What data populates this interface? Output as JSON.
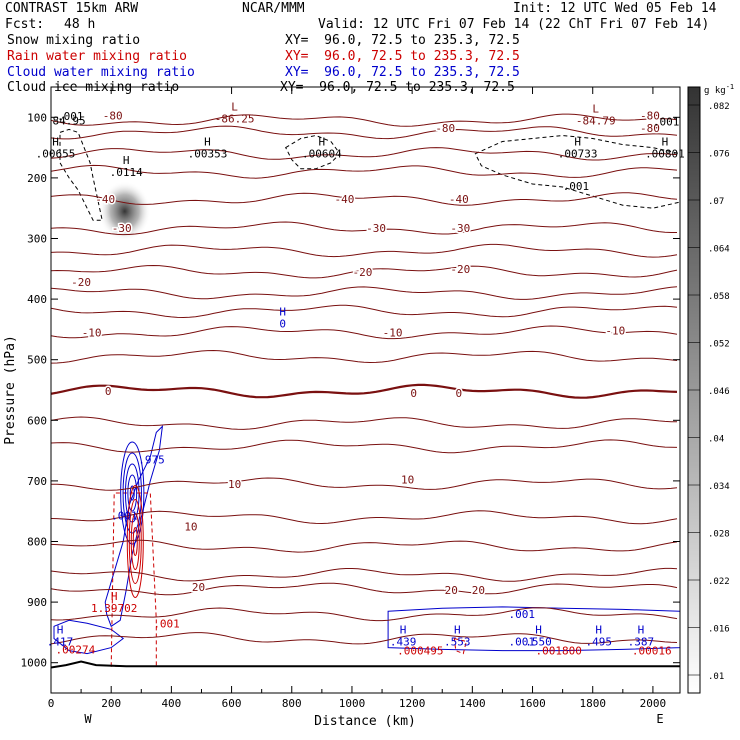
{
  "header": {
    "title": "CONTRAST 15km ARW",
    "center": "NCAR/MMM",
    "init": "Init: 12 UTC Wed 05 Feb 14",
    "fcst_label": "Fcst:",
    "fcst_value": "48 h",
    "valid": "Valid: 12 UTC Fri 07 Feb 14 (22 ChT Fri 07 Feb 14)",
    "fields": [
      {
        "name": "Snow mixing ratio",
        "xy": "XY=  96.0, 72.5 to 235.3, 72.5",
        "color": "#000000"
      },
      {
        "name": "Rain water mixing ratio",
        "xy": "XY=  96.0, 72.5 to 235.3, 72.5",
        "color": "#cc0000"
      },
      {
        "name": "Cloud water mixing ratio",
        "xy": "XY=  96.0, 72.5 to 235.3, 72.5",
        "color": "#0000cc"
      },
      {
        "name": "Cloud ice mixing ratio",
        "xy": "XY=  96.0, 72.5 to 235.3, 72.5",
        "color": "#000000"
      }
    ]
  },
  "chart_data": {
    "type": "cross-section contour",
    "xlabel": "Distance (km)",
    "ylabel": "Pressure (hPa)",
    "xlim": [
      0,
      2090
    ],
    "ylim": [
      1050,
      50
    ],
    "x_ticks": [
      "0",
      "200",
      "400",
      "600",
      "800",
      "1000",
      "1200",
      "1400",
      "1600",
      "1800",
      "2000"
    ],
    "y_ticks": [
      "100",
      "200",
      "300",
      "400",
      "500",
      "600",
      "700",
      "800",
      "900",
      "1000"
    ],
    "x_end_labels": [
      "W",
      "E"
    ],
    "colorbar": {
      "unit": "g kg",
      "unit_exp": "-1",
      "ticks": [
        ".01",
        ".016",
        ".022",
        ".028",
        ".034",
        ".04",
        ".046",
        ".052",
        ".058",
        ".064",
        ".07",
        ".076",
        ".082"
      ],
      "low_color": "#ffffff",
      "high_color": "#333333"
    },
    "temperature_contours": {
      "color": "#7a1010",
      "levels": [
        {
          "p": 105,
          "label": "-80"
        },
        {
          "p": 125,
          "label": "-80"
        },
        {
          "p": 160,
          "label": ""
        },
        {
          "p": 190,
          "label": ""
        },
        {
          "p": 235,
          "label": "-40"
        },
        {
          "p": 283,
          "label": "-30"
        },
        {
          "p": 320,
          "label": ""
        },
        {
          "p": 355,
          "label": "-20"
        },
        {
          "p": 390,
          "label": ""
        },
        {
          "p": 420,
          "label": ""
        },
        {
          "p": 455,
          "label": "-10"
        },
        {
          "p": 495,
          "label": ""
        },
        {
          "p": 552,
          "label": "0"
        },
        {
          "p": 605,
          "label": ""
        },
        {
          "p": 643,
          "label": ""
        },
        {
          "p": 705,
          "label": "10"
        },
        {
          "p": 760,
          "label": ""
        },
        {
          "p": 808,
          "label": ""
        },
        {
          "p": 855,
          "label": ""
        },
        {
          "p": 878,
          "label": "20"
        },
        {
          "p": 920,
          "label": ""
        },
        {
          "p": 960,
          "label": ""
        }
      ]
    },
    "temperature_labels": [
      {
        "x": 205,
        "p": 97,
        "text": "-80"
      },
      {
        "x": 1310,
        "p": 118,
        "text": "-80"
      },
      {
        "x": 1990,
        "p": 97,
        "text": "-80"
      },
      {
        "x": 1990,
        "p": 118,
        "text": "-80"
      },
      {
        "x": 180,
        "p": 235,
        "text": "-40"
      },
      {
        "x": 975,
        "p": 235,
        "text": "-40"
      },
      {
        "x": 1355,
        "p": 235,
        "text": "-40"
      },
      {
        "x": 235,
        "p": 283,
        "text": "-30"
      },
      {
        "x": 1080,
        "p": 283,
        "text": "-30"
      },
      {
        "x": 1360,
        "p": 283,
        "text": "-30"
      },
      {
        "x": 100,
        "p": 372,
        "text": "-20"
      },
      {
        "x": 1035,
        "p": 355,
        "text": "-20"
      },
      {
        "x": 1360,
        "p": 350,
        "text": "-20"
      },
      {
        "x": 135,
        "p": 455,
        "text": "-10"
      },
      {
        "x": 1135,
        "p": 455,
        "text": "-10"
      },
      {
        "x": 1875,
        "p": 452,
        "text": "-10"
      },
      {
        "x": 190,
        "p": 552,
        "text": "0"
      },
      {
        "x": 1205,
        "p": 555,
        "text": "0"
      },
      {
        "x": 1355,
        "p": 555,
        "text": "0"
      },
      {
        "x": 610,
        "p": 705,
        "text": "10"
      },
      {
        "x": 1185,
        "p": 698,
        "text": "10"
      },
      {
        "x": 465,
        "p": 775,
        "text": "10"
      },
      {
        "x": 490,
        "p": 875,
        "text": "20"
      },
      {
        "x": 1330,
        "p": 880,
        "text": "20"
      },
      {
        "x": 1420,
        "p": 880,
        "text": "20"
      }
    ],
    "extrema_labels": [
      {
        "x": 610,
        "p": 92,
        "letter": "L",
        "value": "-86.25",
        "color": "#7a1010"
      },
      {
        "x": 1810,
        "p": 95,
        "letter": "L",
        "value": "-84.79",
        "color": "#7a1010"
      },
      {
        "x": 15,
        "p": 150,
        "letter": "H",
        "value": ".00655",
        "color": "#000000"
      },
      {
        "x": 520,
        "p": 150,
        "letter": "H",
        "value": ".00353",
        "color": "#000000"
      },
      {
        "x": 900,
        "p": 150,
        "letter": "H",
        "value": ".00604",
        "color": "#000000"
      },
      {
        "x": 1750,
        "p": 150,
        "letter": "H",
        "value": ".00733",
        "color": "#000000"
      },
      {
        "x": 2040,
        "p": 150,
        "letter": "H",
        "value": ".00801",
        "color": "#000000"
      },
      {
        "x": 250,
        "p": 180,
        "letter": "H",
        "value": ".0114",
        "color": "#000000"
      },
      {
        "x": 770,
        "p": 430,
        "letter": "H",
        "value": "0",
        "color": "#0000cc"
      },
      {
        "x": 210,
        "p": 900,
        "letter": "H",
        "value": "1.39702",
        "color": "#cc0000"
      },
      {
        "x": 30,
        "p": 955,
        "letter": "H",
        "value": ".417",
        "color": "#0000cc"
      },
      {
        "x": 1170,
        "p": 955,
        "letter": "H",
        "value": ".439",
        "color": "#0000cc"
      },
      {
        "x": 1350,
        "p": 955,
        "letter": "H",
        "value": ".553",
        "color": "#0000cc"
      },
      {
        "x": 1620,
        "p": 955,
        "letter": "H",
        "value": ".550",
        "color": "#0000cc"
      },
      {
        "x": 1820,
        "p": 955,
        "letter": "H",
        "value": ".495",
        "color": "#0000cc"
      },
      {
        "x": 1960,
        "p": 955,
        "letter": "H",
        "value": ".387",
        "color": "#0000cc"
      }
    ],
    "extra_text": [
      {
        "x": 5,
        "p": 105,
        "text": "84.95",
        "color": "#000000"
      },
      {
        "x": 20,
        "p": 98,
        "text": ".001",
        "color": "#000000"
      },
      {
        "x": 2000,
        "p": 107,
        "text": ".001",
        "color": "#000000"
      },
      {
        "x": 1700,
        "p": 213,
        "text": ".001",
        "color": "#000000"
      },
      {
        "x": 290,
        "p": 665,
        "text": ".975",
        "color": "#0000cc"
      },
      {
        "x": 200,
        "p": 757,
        "text": ".001",
        "color": "#0000cc"
      },
      {
        "x": 340,
        "p": 935,
        "text": ".001",
        "color": "#cc0000"
      },
      {
        "x": 1520,
        "p": 920,
        "text": ".001",
        "color": "#0000cc"
      },
      {
        "x": 1520,
        "p": 965,
        "text": ".001",
        "color": "#0000cc"
      },
      {
        "x": 15,
        "p": 978,
        "text": ".00274",
        "color": "#cc0000"
      },
      {
        "x": 1150,
        "p": 980,
        "text": ".000495",
        "color": "#cc0000"
      },
      {
        "x": 1610,
        "p": 980,
        "text": ".001800",
        "color": "#cc0000"
      },
      {
        "x": 1930,
        "p": 980,
        "text": ".00016",
        "color": "#cc0000"
      }
    ],
    "ground": {
      "x": [
        0,
        50,
        100,
        150,
        250,
        400,
        1000,
        2090
      ],
      "p": [
        1008,
        1004,
        998,
        1004,
        1006,
        1006,
        1006,
        1006
      ]
    },
    "shaded_maxima": [
      {
        "x": 245,
        "p": 255,
        "value": 0.082
      }
    ],
    "cloud_ice_region": [
      {
        "x": [
          30,
          60,
          90,
          110,
          130,
          140,
          170,
          140,
          110,
          90,
          60,
          30
        ],
        "p": [
          125,
          120,
          125,
          150,
          175,
          200,
          270,
          270,
          240,
          220,
          200,
          175
        ]
      },
      {
        "x": [
          780,
          830,
          880,
          930,
          960,
          930,
          880,
          830,
          800,
          780
        ],
        "p": [
          150,
          135,
          130,
          140,
          160,
          175,
          185,
          185,
          170,
          150
        ]
      },
      {
        "x": [
          1410,
          1500,
          1600,
          1700,
          1800,
          1900,
          2000,
          2090,
          2090,
          2000,
          1900,
          1800,
          1700,
          1600,
          1500,
          1430
        ],
        "p": [
          160,
          140,
          135,
          130,
          135,
          145,
          150,
          160,
          240,
          250,
          245,
          230,
          215,
          210,
          195,
          180
        ]
      }
    ],
    "cloud_water_region": [
      {
        "x": [
          180,
          210,
          240,
          260,
          290,
          330,
          350,
          370,
          360,
          330,
          300,
          270,
          250,
          230,
          200,
          185
        ],
        "p": [
          900,
          850,
          800,
          740,
          700,
          660,
          620,
          610,
          650,
          700,
          760,
          820,
          880,
          930,
          940,
          920
        ]
      },
      {
        "x": [
          10,
          60,
          120,
          200,
          240,
          200,
          120,
          60,
          10
        ],
        "p": [
          940,
          930,
          935,
          945,
          960,
          975,
          985,
          980,
          960
        ]
      },
      {
        "x": [
          1120,
          1300,
          1500,
          1700,
          1900,
          2090,
          2090,
          1900,
          1700,
          1500,
          1300,
          1120
        ],
        "p": [
          915,
          910,
          908,
          910,
          912,
          915,
          975,
          978,
          980,
          980,
          978,
          975
        ]
      }
    ],
    "rain_water_region": [
      {
        "x": [
          200,
          210,
          330,
          350,
          350,
          200
        ],
        "p": [
          1006,
          720,
          720,
          930,
          1006,
          1006
        ]
      },
      {
        "x": [
          1340,
          1380,
          1370,
          1345
        ],
        "p": [
          960,
          965,
          985,
          980
        ]
      }
    ]
  }
}
